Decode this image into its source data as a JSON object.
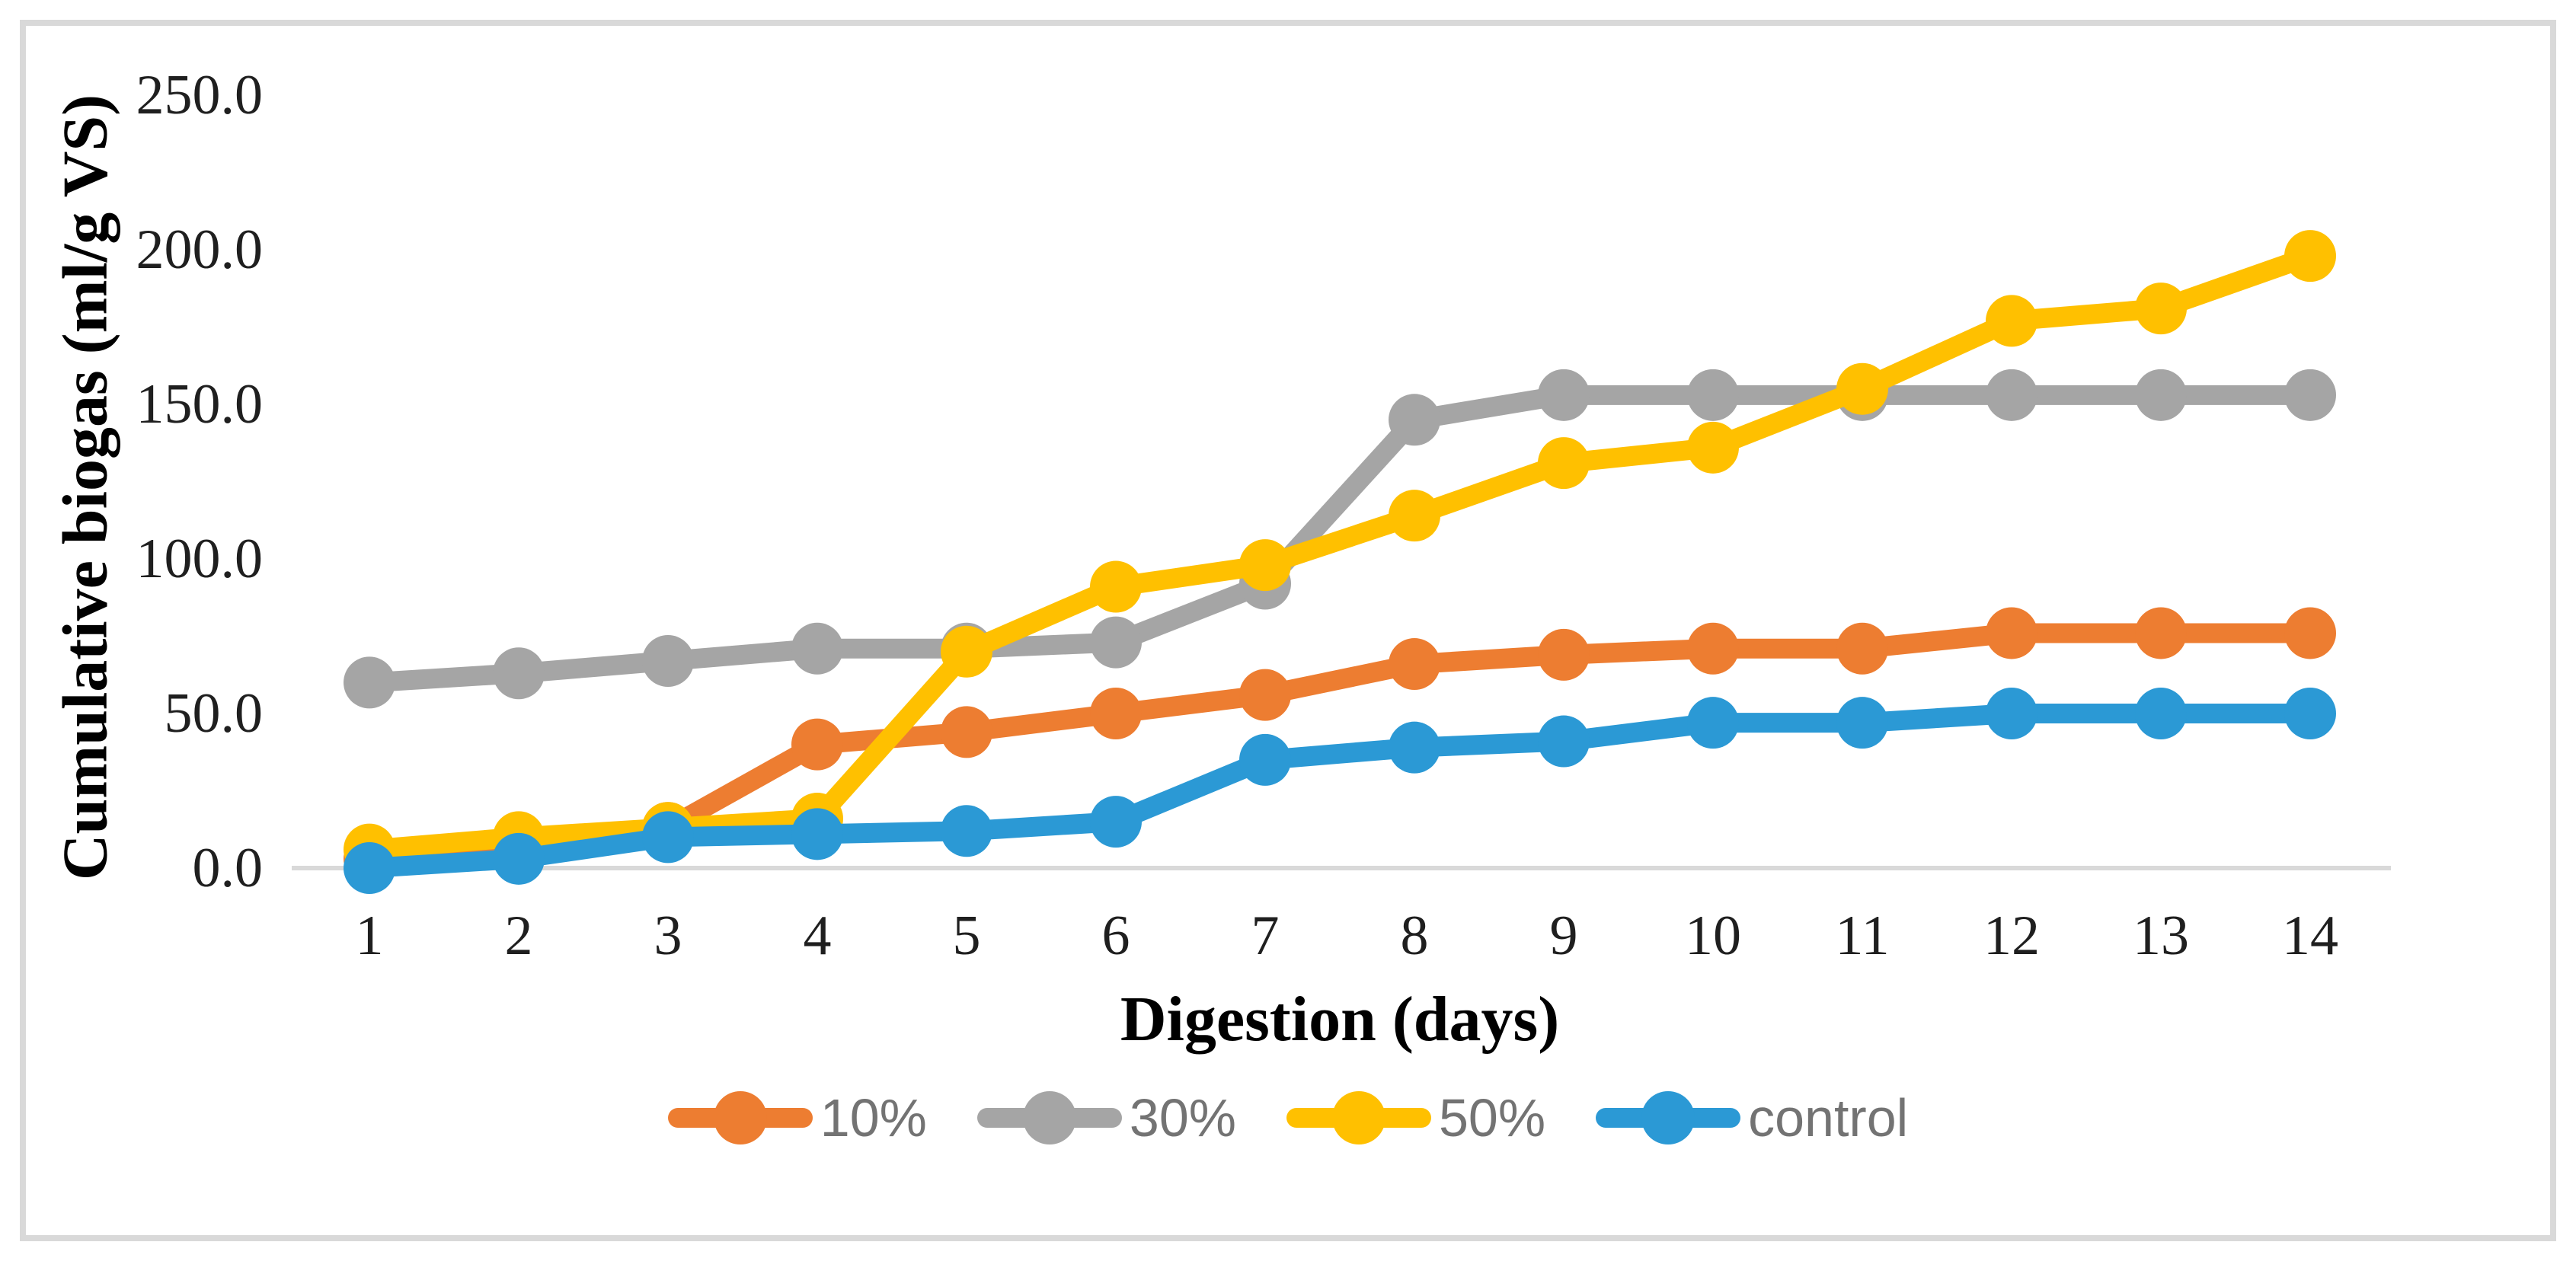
{
  "figure": {
    "y_axis_title": "Cumulative biogas (ml/g VS)",
    "x_axis_title": "Digestion (days)"
  },
  "legend": {
    "items": [
      {
        "label": "10%",
        "color": "#ED7D31"
      },
      {
        "label": "30%",
        "color": "#A5A5A5"
      },
      {
        "label": "50%",
        "color": "#FFC000"
      },
      {
        "label": "control",
        "color": "#2B99D5"
      }
    ]
  },
  "chart_data": {
    "type": "line",
    "title": "",
    "xlabel": "Digestion (days)",
    "ylabel": "Cumulative biogas (ml/g VS)",
    "categories": [
      "1",
      "2",
      "3",
      "4",
      "5",
      "6",
      "7",
      "8",
      "9",
      "10",
      "11",
      "12",
      "13",
      "14"
    ],
    "y_ticks": [
      "0.0",
      "50.0",
      "100.0",
      "150.0",
      "200.0",
      "250.0"
    ],
    "ylim": [
      0,
      250
    ],
    "grid": false,
    "legend_position": "bottom",
    "axis_line_color": "#D9D9D9",
    "series": [
      {
        "name": "10%",
        "color": "#ED7D31",
        "values": [
          3,
          5,
          13,
          40,
          44,
          50,
          56,
          66,
          69,
          71,
          71,
          76,
          76,
          76
        ]
      },
      {
        "name": "30%",
        "color": "#A5A5A5",
        "values": [
          60,
          63,
          67,
          71,
          71,
          73,
          92,
          145,
          153,
          153,
          153,
          153,
          153,
          153
        ]
      },
      {
        "name": "50%",
        "color": "#FFC000",
        "values": [
          6,
          10,
          13,
          16,
          70,
          91,
          98,
          114,
          131,
          136,
          155,
          177,
          181,
          198
        ]
      },
      {
        "name": "control",
        "color": "#2B99D5",
        "values": [
          0,
          3,
          10,
          11,
          12,
          15,
          35,
          39,
          41,
          47,
          47,
          50,
          50,
          50
        ]
      }
    ]
  }
}
